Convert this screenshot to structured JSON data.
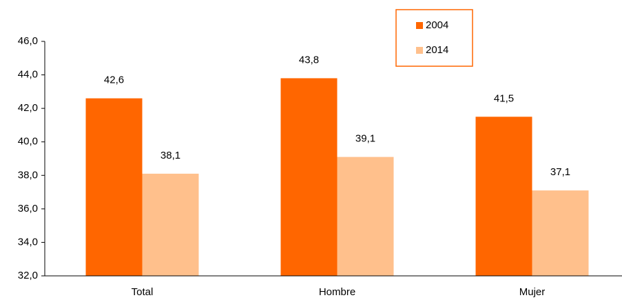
{
  "chart_data": {
    "type": "bar",
    "categories": [
      "Total",
      "Hombre",
      "Mujer"
    ],
    "series": [
      {
        "name": "2004",
        "color": "#ff6600",
        "values": [
          42.6,
          43.8,
          41.5
        ],
        "value_labels": [
          "42,6",
          "43,8",
          "41,5"
        ]
      },
      {
        "name": "2014",
        "color": "#ffc08c",
        "values": [
          38.1,
          39.1,
          37.1
        ],
        "value_labels": [
          "38,1",
          "39,1",
          "37,1"
        ]
      }
    ],
    "ylim": [
      32,
      46
    ],
    "yticks": [
      {
        "value": 32,
        "label": "32,0"
      },
      {
        "value": 34,
        "label": "34,0"
      },
      {
        "value": 36,
        "label": "36,0"
      },
      {
        "value": 38,
        "label": "38,0"
      },
      {
        "value": 40,
        "label": "40,0"
      },
      {
        "value": 42,
        "label": "42,0"
      },
      {
        "value": 44,
        "label": "44,0"
      },
      {
        "value": 46,
        "label": "46,0"
      }
    ],
    "grid": false,
    "legend": "top-right"
  }
}
